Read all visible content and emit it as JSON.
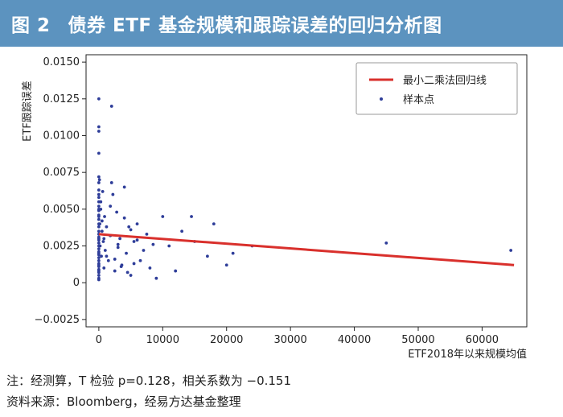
{
  "figure": {
    "number": "图 2",
    "title": "债券 ETF 基金规模和跟踪误差的回归分析图"
  },
  "notes": {
    "note": "注：经测算，T 检验 p=0.128，相关系数为 −0.151",
    "source": "资料来源：Bloomberg，经易方达基金整理"
  },
  "colors": {
    "header_bg": "#5c93bf",
    "regression_line": "#d9302c",
    "points": "#2e3d99"
  },
  "chart_data": {
    "type": "scatter",
    "xlabel": "ETF2018年以来规模均值",
    "ylabel": "ETF跟踪误差",
    "xlim": [
      -2000,
      67000
    ],
    "ylim": [
      -0.003,
      0.0155
    ],
    "xticks": [
      "0",
      "10000",
      "20000",
      "30000",
      "40000",
      "50000",
      "60000"
    ],
    "yticks": [
      "0.0150",
      "0.0125",
      "0.0100",
      "0.0075",
      "0.0050",
      "0.0025",
      "0",
      "−0.0025"
    ],
    "grid": false,
    "legend_position": "top-right",
    "series": [
      {
        "name": "最小二乘法回归线",
        "kind": "line",
        "x": [
          0,
          65000
        ],
        "y": [
          0.0033,
          0.0012
        ]
      },
      {
        "name": "样本点",
        "kind": "scatter",
        "x": [
          0,
          0,
          0,
          0,
          0,
          0,
          0,
          0,
          0,
          0,
          0,
          0,
          0,
          0,
          0,
          0,
          0,
          0,
          0,
          0,
          0,
          0,
          0,
          0,
          0,
          0,
          0,
          0,
          0,
          0,
          0,
          0,
          0,
          0,
          0,
          0,
          0,
          0,
          0,
          0,
          100,
          150,
          200,
          300,
          400,
          500,
          600,
          700,
          800,
          900,
          1000,
          1200,
          1500,
          1800,
          2000,
          2200,
          2500,
          2800,
          3000,
          3300,
          3600,
          4000,
          4300,
          4700,
          5000,
          5500,
          6000,
          6500,
          7000,
          7500,
          8000,
          8500,
          9000,
          10000,
          11000,
          12000,
          13000,
          14500,
          15000,
          17000,
          18000,
          20000,
          21000,
          24000,
          45000,
          64500,
          300,
          500,
          800,
          1200,
          1800,
          2500,
          3000,
          3500,
          4000,
          4500,
          5000,
          5500,
          6000,
          2000
        ],
        "y": [
          0.0125,
          0.0106,
          0.0103,
          0.0088,
          0.0072,
          0.0068,
          0.0063,
          0.0058,
          0.0055,
          0.0052,
          0.0049,
          0.0046,
          0.0043,
          0.004,
          0.0038,
          0.0035,
          0.0033,
          0.0031,
          0.0029,
          0.0027,
          0.0025,
          0.0023,
          0.0021,
          0.0019,
          0.0017,
          0.0015,
          0.0013,
          0.0011,
          0.0009,
          0.0007,
          0.0005,
          0.0003,
          0.006,
          0.005,
          0.0045,
          0.003,
          0.002,
          0.0012,
          0.0008,
          0.0002,
          0.007,
          0.004,
          0.0025,
          0.0055,
          0.0018,
          0.0035,
          0.0062,
          0.0028,
          0.001,
          0.0045,
          0.0022,
          0.0038,
          0.0015,
          0.0032,
          0.012,
          0.006,
          0.0008,
          0.0048,
          0.0024,
          0.003,
          0.0012,
          0.0065,
          0.002,
          0.0038,
          0.0005,
          0.0028,
          0.004,
          0.0015,
          0.0022,
          0.0033,
          0.001,
          0.0026,
          0.0003,
          0.0045,
          0.0025,
          0.0008,
          0.0035,
          0.0045,
          0.0028,
          0.0018,
          0.004,
          0.0012,
          0.002,
          0.0025,
          0.0027,
          0.0022,
          0.005,
          0.0042,
          0.003,
          0.0018,
          0.0052,
          0.0016,
          0.0026,
          0.0011,
          0.0044,
          0.0007,
          0.0036,
          0.0013,
          0.0029,
          0.0068
        ]
      }
    ]
  }
}
